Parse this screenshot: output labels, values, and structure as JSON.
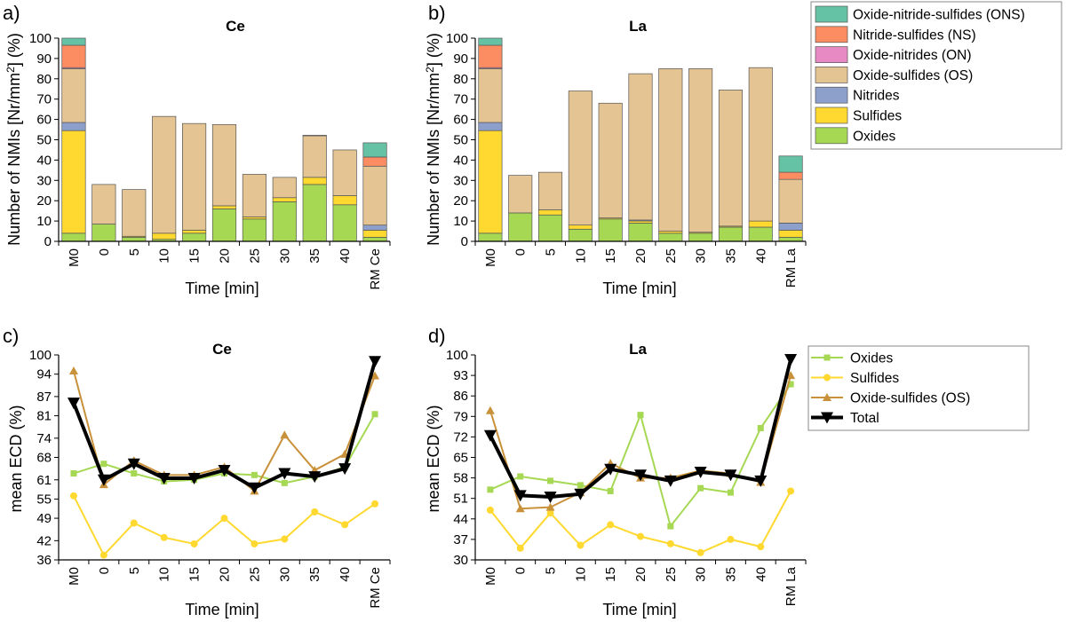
{
  "colors": {
    "ONS": "#66c2a5",
    "NS": "#fc8d62",
    "ON": "#e78ac3",
    "OS": "#e5c494",
    "N": "#8da0cb",
    "S": "#ffd92f",
    "O": "#a6d854",
    "line_oxides": "#a6d854",
    "line_sulfides": "#ffd92f",
    "line_os": "#c8913a",
    "line_total": "#000000"
  },
  "legend_top": [
    {
      "key": "ONS",
      "label": "Oxide-nitride-sulfides (ONS)"
    },
    {
      "key": "NS",
      "label": "Nitride-sulfides (NS)"
    },
    {
      "key": "ON",
      "label": "Oxide-nitrides (ON)"
    },
    {
      "key": "OS",
      "label": "Oxide-sulfides (OS)"
    },
    {
      "key": "N",
      "label": "Nitrides"
    },
    {
      "key": "S",
      "label": "Sulfides"
    },
    {
      "key": "O",
      "label": "Oxides"
    }
  ],
  "legend_bottom": [
    {
      "key": "oxides",
      "label": "Oxides"
    },
    {
      "key": "sulfides",
      "label": "Sulfides"
    },
    {
      "key": "os",
      "label": "Oxide-sulfides (OS)"
    },
    {
      "key": "total",
      "label": "Total"
    }
  ],
  "chart_data": [
    {
      "panel": "a)",
      "type": "bar",
      "stacked": true,
      "title": "Ce",
      "xlabel": "Time [min]",
      "ylabel_main": "Number of NMIs [Nr/mm",
      "ylabel_sup": "2",
      "ylabel_end": "] (%)",
      "ylim": [
        0,
        100
      ],
      "yticks": [
        0,
        10,
        20,
        30,
        40,
        50,
        60,
        70,
        80,
        90,
        100
      ],
      "categories": [
        "M0",
        "0",
        "5",
        "10",
        "15",
        "20",
        "25",
        "30",
        "35",
        "40",
        "RM Ce"
      ],
      "series": [
        {
          "key": "O",
          "name": "Oxides",
          "values": [
            4,
            8.5,
            2,
            1,
            4,
            16,
            11,
            19.5,
            28,
            18,
            2
          ]
        },
        {
          "key": "S",
          "name": "Sulfides",
          "values": [
            50.5,
            0,
            0.5,
            3,
            1.5,
            1.5,
            1,
            2,
            3.5,
            4.5,
            3.5
          ]
        },
        {
          "key": "N",
          "name": "Nitrides",
          "values": [
            4,
            0,
            0,
            0,
            0,
            0,
            0,
            0,
            0,
            0,
            2.5
          ]
        },
        {
          "key": "OS",
          "name": "Oxide-sulfides (OS)",
          "values": [
            26.5,
            19.5,
            23,
            57.5,
            52.5,
            40,
            21,
            10,
            20.5,
            22.5,
            29
          ]
        },
        {
          "key": "ON",
          "name": "Oxide-nitrides (ON)",
          "values": [
            0.5,
            0,
            0,
            0,
            0,
            0,
            0,
            0,
            0,
            0,
            0
          ]
        },
        {
          "key": "NS",
          "name": "Nitride-sulfides (NS)",
          "values": [
            11,
            0,
            0,
            0,
            0,
            0,
            0,
            0,
            0.2,
            0,
            4.5
          ]
        },
        {
          "key": "ONS",
          "name": "Oxide-nitride-sulfides (ONS)",
          "values": [
            3.5,
            0,
            0,
            0,
            0,
            0,
            0,
            0,
            0,
            0,
            7
          ]
        }
      ]
    },
    {
      "panel": "b)",
      "type": "bar",
      "stacked": true,
      "title": "La",
      "xlabel": "Time [min]",
      "ylabel_main": "Number of NMIs [Nr/mm",
      "ylabel_sup": "2",
      "ylabel_end": "] (%)",
      "ylim": [
        0,
        100
      ],
      "yticks": [
        0,
        10,
        20,
        30,
        40,
        50,
        60,
        70,
        80,
        90,
        100
      ],
      "categories": [
        "M0",
        "0",
        "5",
        "10",
        "15",
        "20",
        "25",
        "30",
        "35",
        "40",
        "RM La"
      ],
      "series": [
        {
          "key": "O",
          "name": "Oxides",
          "values": [
            4,
            14,
            13,
            6,
            11,
            9,
            4,
            4,
            7,
            7,
            2
          ]
        },
        {
          "key": "S",
          "name": "Sulfides",
          "values": [
            50.5,
            0,
            2.5,
            2,
            0.5,
            1,
            1,
            0.5,
            0.5,
            3,
            3.5
          ]
        },
        {
          "key": "N",
          "name": "Nitrides",
          "values": [
            4,
            0,
            0,
            0,
            0,
            0.5,
            0,
            0,
            0,
            0,
            3.5
          ]
        },
        {
          "key": "OS",
          "name": "Oxide-sulfides (OS)",
          "values": [
            26.5,
            18.5,
            18.5,
            66,
            56.5,
            72,
            80,
            80.5,
            67,
            75.5,
            21.5
          ]
        },
        {
          "key": "ON",
          "name": "Oxide-nitrides (ON)",
          "values": [
            0.5,
            0,
            0,
            0,
            0,
            0,
            0,
            0,
            0,
            0,
            0
          ]
        },
        {
          "key": "NS",
          "name": "Nitride-sulfides (NS)",
          "values": [
            11,
            0,
            0,
            0,
            0,
            0,
            0,
            0,
            0,
            0,
            3.5
          ]
        },
        {
          "key": "ONS",
          "name": "Oxide-nitride-sulfides (ONS)",
          "values": [
            3.5,
            0,
            0,
            0,
            0,
            0,
            0,
            0,
            0,
            0,
            8
          ]
        }
      ]
    },
    {
      "panel": "c)",
      "type": "line",
      "title": "Ce",
      "xlabel": "Time [min]",
      "ylabel": "mean ECD (%)",
      "ylim": [
        36,
        100
      ],
      "yticks": [
        36,
        42,
        49,
        55,
        61,
        68,
        74,
        81,
        87,
        94,
        100
      ],
      "categories": [
        "M0",
        "0",
        "5",
        "10",
        "15",
        "20",
        "25",
        "30",
        "35",
        "40",
        "RM Ce"
      ],
      "series": [
        {
          "key": "oxides",
          "name": "Oxides",
          "values": [
            63,
            66,
            63,
            60.5,
            61,
            63,
            62.5,
            60,
            62,
            65,
            81.5
          ]
        },
        {
          "key": "sulfides",
          "name": "Sulfides",
          "values": [
            56,
            37.5,
            47.5,
            43,
            41,
            49,
            41,
            42.5,
            51,
            47,
            53.5
          ]
        },
        {
          "key": "os",
          "name": "Oxide-sulfides (OS)",
          "values": [
            95,
            59.5,
            67,
            62.5,
            62.5,
            65,
            57.5,
            75,
            64,
            69,
            93.5
          ]
        },
        {
          "key": "total",
          "name": "Total",
          "values": [
            85,
            61,
            66,
            61.5,
            61.5,
            64,
            58.5,
            63,
            62,
            64.5,
            98
          ]
        }
      ]
    },
    {
      "panel": "d)",
      "type": "line",
      "title": "La",
      "xlabel": "Time [min]",
      "ylabel": "mean ECD (%)",
      "ylim": [
        30,
        100
      ],
      "yticks": [
        30,
        37,
        44,
        51,
        58,
        65,
        72,
        79,
        86,
        93,
        100
      ],
      "categories": [
        "M0",
        "0",
        "5",
        "10",
        "15",
        "20",
        "25",
        "30",
        "35",
        "40",
        "RM La"
      ],
      "series": [
        {
          "key": "oxides",
          "name": "Oxides",
          "values": [
            54,
            58.5,
            57,
            55.5,
            53.5,
            79.5,
            41.5,
            54.5,
            53,
            75,
            90
          ]
        },
        {
          "key": "sulfides",
          "name": "Sulfides",
          "values": [
            47,
            34,
            46,
            35,
            42,
            38,
            35.5,
            32.5,
            37,
            34.5,
            53.5
          ]
        },
        {
          "key": "os",
          "name": "Oxide-sulfides (OS)",
          "values": [
            81,
            47.5,
            48,
            53,
            63,
            58,
            58,
            60.5,
            59.5,
            56.5,
            93
          ]
        },
        {
          "key": "total",
          "name": "Total",
          "values": [
            72.5,
            52,
            51.5,
            52.5,
            61,
            59,
            57,
            60,
            59,
            57,
            98.5
          ]
        }
      ]
    }
  ]
}
